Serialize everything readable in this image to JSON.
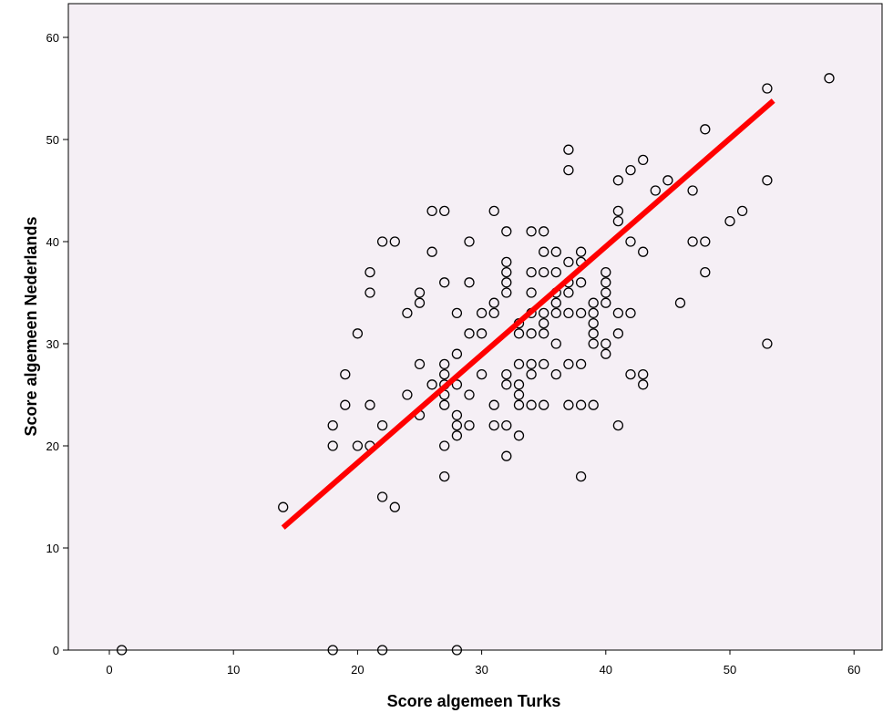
{
  "chart_data": {
    "type": "scatter",
    "title": "",
    "xlabel": "Score algemeen Turks",
    "ylabel": "Score algemeen Nederlands",
    "xlim": [
      -3,
      62
    ],
    "ylim": [
      0,
      63
    ],
    "xticks": [
      0,
      10,
      20,
      30,
      40,
      50,
      60
    ],
    "yticks": [
      0,
      10,
      20,
      30,
      40,
      50,
      60
    ],
    "grid": false,
    "legend": "none",
    "colors": {
      "plot_background": "#f5eff5",
      "marker_stroke": "#000000",
      "fit_line": "#ff0000"
    },
    "fit_line": {
      "points": [
        [
          14,
          12
        ],
        [
          53.5,
          53.8
        ]
      ]
    },
    "points": [
      [
        1,
        0
      ],
      [
        18,
        0
      ],
      [
        22,
        0
      ],
      [
        28,
        0
      ],
      [
        14,
        14
      ],
      [
        22,
        15
      ],
      [
        23,
        14
      ],
      [
        18,
        20
      ],
      [
        18,
        22
      ],
      [
        20,
        20
      ],
      [
        21,
        20
      ],
      [
        22,
        22
      ],
      [
        25,
        23
      ],
      [
        28,
        21
      ],
      [
        28,
        22
      ],
      [
        29,
        22
      ],
      [
        28,
        23
      ],
      [
        27,
        17
      ],
      [
        27,
        20
      ],
      [
        32,
        19
      ],
      [
        33,
        21
      ],
      [
        31,
        22
      ],
      [
        32,
        22
      ],
      [
        35,
        24
      ],
      [
        34,
        24
      ],
      [
        37,
        24
      ],
      [
        38,
        24
      ],
      [
        39,
        24
      ],
      [
        33,
        24
      ],
      [
        19,
        24
      ],
      [
        21,
        24
      ],
      [
        19,
        27
      ],
      [
        24,
        25
      ],
      [
        25,
        28
      ],
      [
        26,
        26
      ],
      [
        27,
        24
      ],
      [
        27,
        25
      ],
      [
        27,
        26
      ],
      [
        27,
        27
      ],
      [
        27,
        28
      ],
      [
        28,
        26
      ],
      [
        28,
        29
      ],
      [
        29,
        25
      ],
      [
        30,
        27
      ],
      [
        31,
        24
      ],
      [
        32,
        26
      ],
      [
        32,
        27
      ],
      [
        33,
        25
      ],
      [
        33,
        26
      ],
      [
        33,
        28
      ],
      [
        34,
        27
      ],
      [
        34,
        28
      ],
      [
        35,
        28
      ],
      [
        36,
        27
      ],
      [
        37,
        28
      ],
      [
        38,
        28
      ],
      [
        38,
        17
      ],
      [
        41,
        22
      ],
      [
        21,
        35
      ],
      [
        21,
        37
      ],
      [
        20,
        31
      ],
      [
        22,
        40
      ],
      [
        23,
        40
      ],
      [
        24,
        33
      ],
      [
        25,
        34
      ],
      [
        25,
        35
      ],
      [
        26,
        39
      ],
      [
        26,
        43
      ],
      [
        27,
        43
      ],
      [
        27,
        36
      ],
      [
        28,
        33
      ],
      [
        29,
        36
      ],
      [
        29,
        40
      ],
      [
        29,
        31
      ],
      [
        30,
        31
      ],
      [
        30,
        33
      ],
      [
        31,
        33
      ],
      [
        31,
        34
      ],
      [
        31,
        43
      ],
      [
        32,
        35
      ],
      [
        32,
        36
      ],
      [
        32,
        37
      ],
      [
        32,
        38
      ],
      [
        32,
        41
      ],
      [
        33,
        31
      ],
      [
        33,
        32
      ],
      [
        34,
        31
      ],
      [
        34,
        33
      ],
      [
        34,
        35
      ],
      [
        34,
        37
      ],
      [
        34,
        41
      ],
      [
        35,
        31
      ],
      [
        35,
        32
      ],
      [
        35,
        33
      ],
      [
        35,
        37
      ],
      [
        35,
        39
      ],
      [
        35,
        41
      ],
      [
        36,
        30
      ],
      [
        36,
        33
      ],
      [
        36,
        34
      ],
      [
        36,
        35
      ],
      [
        36,
        37
      ],
      [
        36,
        39
      ],
      [
        37,
        33
      ],
      [
        37,
        35
      ],
      [
        37,
        36
      ],
      [
        37,
        38
      ],
      [
        37,
        47
      ],
      [
        37,
        49
      ],
      [
        38,
        33
      ],
      [
        38,
        36
      ],
      [
        38,
        38
      ],
      [
        38,
        39
      ],
      [
        39,
        30
      ],
      [
        39,
        31
      ],
      [
        39,
        32
      ],
      [
        39,
        33
      ],
      [
        39,
        34
      ],
      [
        40,
        29
      ],
      [
        40,
        30
      ],
      [
        40,
        34
      ],
      [
        40,
        35
      ],
      [
        40,
        36
      ],
      [
        40,
        37
      ],
      [
        41,
        31
      ],
      [
        41,
        33
      ],
      [
        41,
        42
      ],
      [
        41,
        43
      ],
      [
        41,
        46
      ],
      [
        42,
        27
      ],
      [
        42,
        33
      ],
      [
        42,
        40
      ],
      [
        42,
        47
      ],
      [
        43,
        26
      ],
      [
        43,
        27
      ],
      [
        43,
        39
      ],
      [
        43,
        48
      ],
      [
        44,
        45
      ],
      [
        45,
        46
      ],
      [
        46,
        34
      ],
      [
        47,
        40
      ],
      [
        47,
        45
      ],
      [
        48,
        37
      ],
      [
        48,
        40
      ],
      [
        48,
        51
      ],
      [
        50,
        42
      ],
      [
        51,
        43
      ],
      [
        53,
        30
      ],
      [
        53,
        46
      ],
      [
        53,
        55
      ],
      [
        58,
        56
      ]
    ]
  }
}
